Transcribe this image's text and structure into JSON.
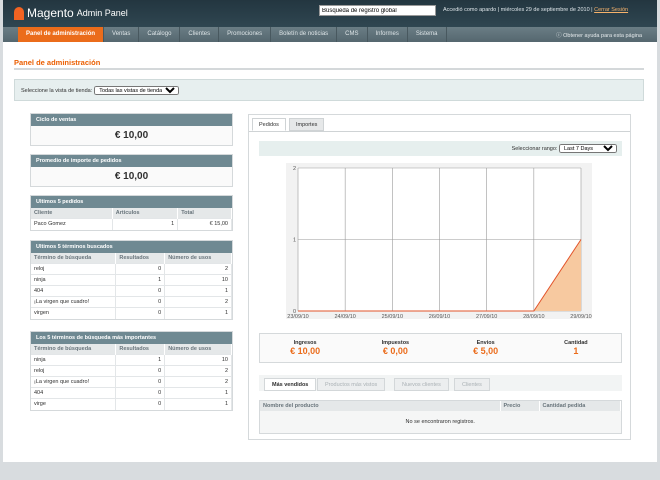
{
  "header": {
    "brand": "Magento",
    "brand_sub": "Admin Panel",
    "search_value": "Búsqueda de registro global",
    "user_text": "Accedió como apardo | miércoles 29 de septiembre de 2010 |",
    "logout": "Cerrar Sesión",
    "help": "Obtener ayuda para esta página"
  },
  "nav": [
    "Panel de administración",
    "Ventas",
    "Catálogo",
    "Clientes",
    "Promociones",
    "Boletín de noticias",
    "CMS",
    "Informes",
    "Sistema"
  ],
  "page": {
    "title": "Panel de administración",
    "store_label": "Seleccione la vista de tienda:",
    "store_value": "Todas las vistas de tienda"
  },
  "sales": {
    "title": "Ciclo de ventas",
    "value": "€ 10,00"
  },
  "avg": {
    "title": "Promedio de importe de pedidos",
    "value": "€ 10,00"
  },
  "orders": {
    "title": "Ultimos 5 pedidos",
    "headers": [
      "Cliente",
      "Articulos",
      "Total"
    ],
    "rows": [
      [
        "Paco Gomez",
        "1",
        "€ 15,00"
      ]
    ]
  },
  "last_terms": {
    "title": "Ultimos 5 términos buscados",
    "headers": [
      "Término de búsqueda",
      "Resultados",
      "Número de usos"
    ],
    "rows": [
      [
        "reloj",
        "0",
        "2"
      ],
      [
        "ninja",
        "1",
        "10"
      ],
      [
        "404",
        "0",
        "1"
      ],
      [
        "¡La virgen que cuadro!",
        "0",
        "2"
      ],
      [
        "virgen",
        "0",
        "1"
      ]
    ]
  },
  "top_terms": {
    "title": "Los 5 términos de búsqueda más importantes",
    "headers": [
      "Término de búsqueda",
      "Resultados",
      "Número de usos"
    ],
    "rows": [
      [
        "ninja",
        "1",
        "10"
      ],
      [
        "reloj",
        "0",
        "2"
      ],
      [
        "¡La virgen que cuadro!",
        "0",
        "2"
      ],
      [
        "404",
        "0",
        "1"
      ],
      [
        "virge",
        "0",
        "1"
      ]
    ]
  },
  "chart_tabs": [
    "Pedidos",
    "Importes"
  ],
  "range": {
    "label": "Seleccionar rango:",
    "value": "Last 7 Days"
  },
  "chart_data": {
    "type": "area",
    "x": [
      "23/09/10",
      "24/09/10",
      "25/09/10",
      "26/09/10",
      "27/09/10",
      "28/09/10",
      "29/09/10"
    ],
    "values": [
      0,
      0,
      0,
      0,
      0,
      0,
      1
    ],
    "ylim": [
      0,
      2
    ],
    "yticks": [
      "0",
      "1",
      "2"
    ],
    "grid": true,
    "color": "#e2542b",
    "fill": "#f7c9a0"
  },
  "totals": [
    {
      "label": "Ingresos",
      "value": "€ 10,00"
    },
    {
      "label": "Impuestos",
      "value": "€ 0,00"
    },
    {
      "label": "Envios",
      "value": "€ 5,00"
    },
    {
      "label": "Cantidad",
      "value": "1"
    }
  ],
  "bottom_tabs": [
    "Más vendidos",
    "Productos más vistos",
    "Nuevos clientes",
    "Clientes"
  ],
  "products": {
    "headers": [
      "Nombre del producto",
      "Precio",
      "Cantidad pedida"
    ],
    "empty": "No se encontraron registros."
  }
}
